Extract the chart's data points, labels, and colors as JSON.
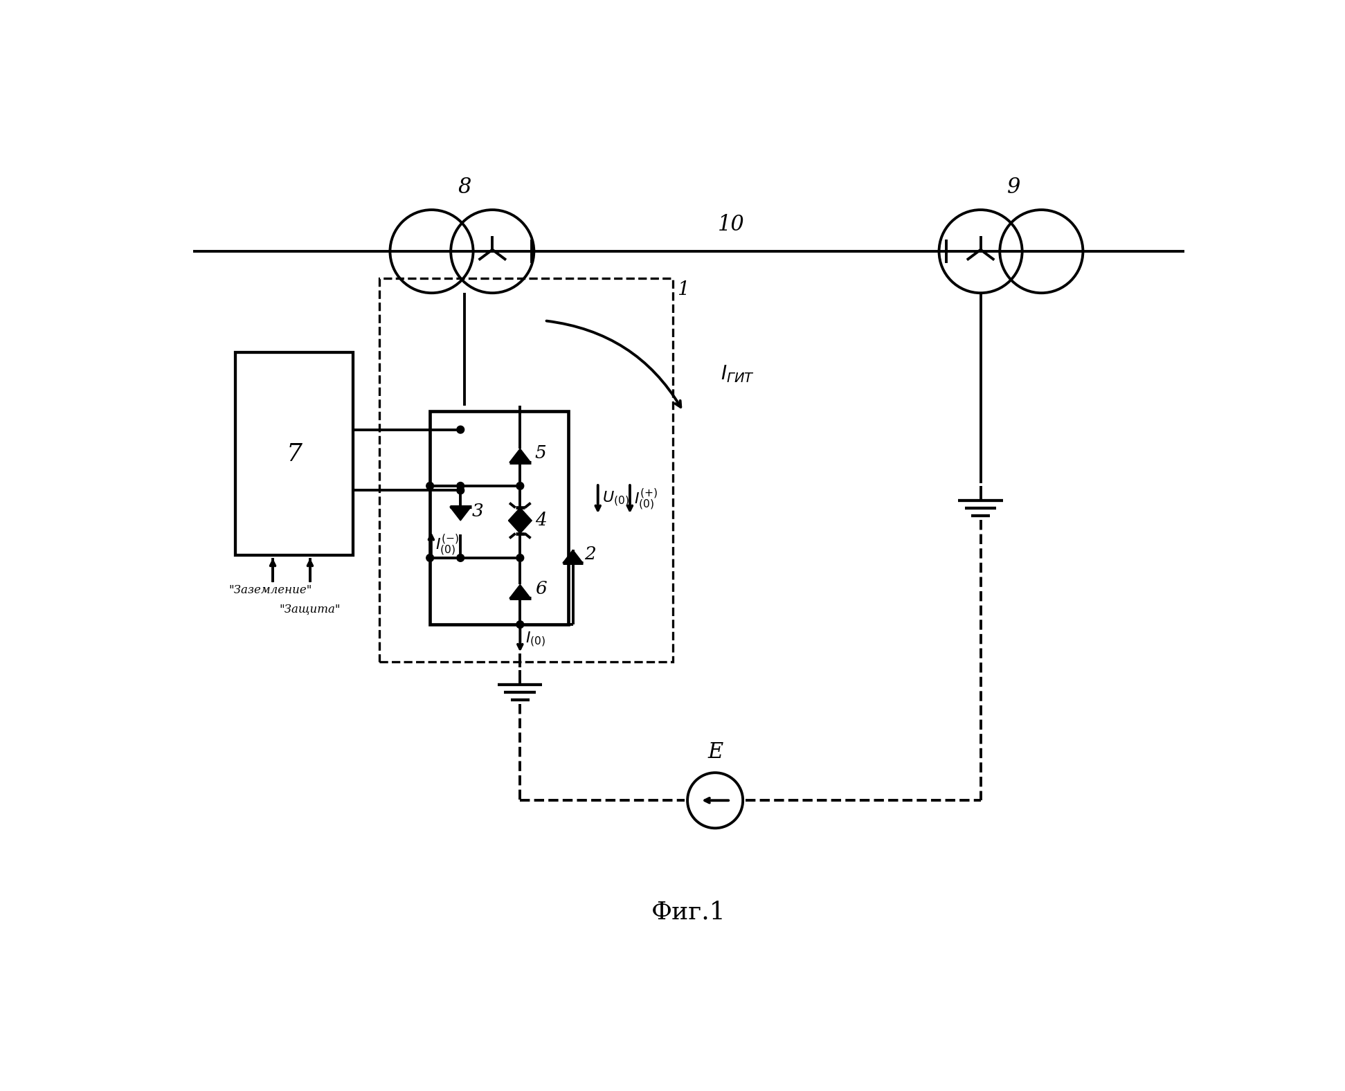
{
  "bg_color": "#ffffff",
  "line_color": "#000000",
  "lw": 2.8,
  "fig_title": "Фиг.1",
  "label_8": "8",
  "label_9": "9",
  "label_10": "10",
  "label_1": "1",
  "label_2": "2",
  "label_3": "3",
  "label_4": "4",
  "label_5": "5",
  "label_6": "6",
  "label_7": "7",
  "label_E": "E",
  "label_Igit": "I_ГИТ",
  "label_zazemlenie": "\"Заземление\"",
  "label_zashita": "\"Защита\""
}
